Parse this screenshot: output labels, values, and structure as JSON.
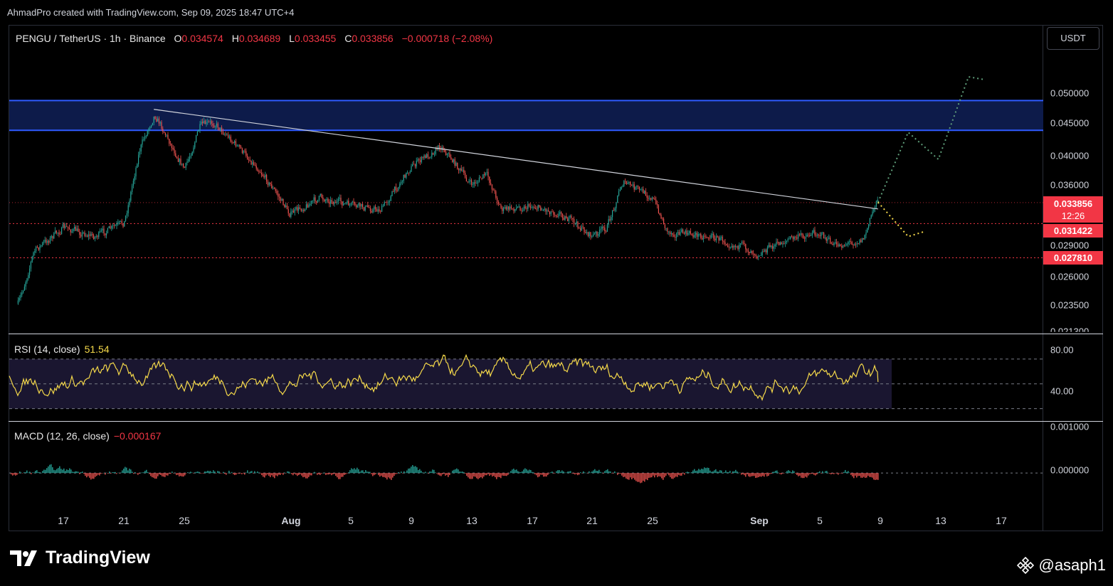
{
  "header": {
    "credit": "AhmadPro created with TradingView.com, Sep 09, 2025 18:47 UTC+4"
  },
  "legend": {
    "symbol": "PENGU / TetherUS · 1h · Binance",
    "open_label": "O",
    "open": "0.034574",
    "high_label": "H",
    "high": "0.034689",
    "low_label": "L",
    "low": "0.033455",
    "close_label": "C",
    "close": "0.033856",
    "change": "−0.000718 (−2.08%)"
  },
  "currency_button": "USDT",
  "price_axis": [
    "0.050000",
    "0.045000",
    "0.040000",
    "0.036000",
    "0.029000",
    "0.026000",
    "0.023500",
    "0.021300"
  ],
  "price_tags": {
    "current": "0.033856",
    "countdown": "12:26",
    "level_1": "0.031422",
    "level_2": "0.027810"
  },
  "rsi": {
    "label": "RSI (14, close)",
    "value": "51.54",
    "axis": [
      "80.00",
      "40.00"
    ]
  },
  "macd": {
    "label": "MACD (12, 26, close)",
    "value": "−0.000167",
    "axis": [
      "0.001000",
      "0.000000"
    ]
  },
  "time_axis": [
    "17",
    "21",
    "25",
    "Aug",
    "5",
    "9",
    "13",
    "17",
    "21",
    "25",
    "Sep",
    "5",
    "9",
    "13",
    "17"
  ],
  "brand": "TradingView",
  "author": "@asaph1",
  "colors": {
    "up": "#26a69a",
    "down": "#ef5350",
    "zone": "#0d1b4a",
    "zone_border": "#2f5bff",
    "rsi": "#f5d94a",
    "level": "#f23645",
    "bull_path": "#5f9e7a",
    "bear_path": "#f5d94a"
  },
  "chart_data": {
    "type": "candlestick",
    "title": "PENGU / TetherUS · 1h · Binance",
    "ylim": [
      0.0213,
      0.0535
    ],
    "y_ticks": [
      0.05,
      0.045,
      0.04,
      0.036,
      0.029,
      0.026,
      0.0235,
      0.0213
    ],
    "x_ticks": [
      "17",
      "21",
      "25",
      "Aug",
      "5",
      "9",
      "13",
      "17",
      "21",
      "25",
      "Sep",
      "5",
      "9",
      "13",
      "17"
    ],
    "resistance_zone": [
      0.0438,
      0.0487
    ],
    "horizontal_levels": [
      0.033856,
      0.031422,
      0.02781
    ],
    "trendline": {
      "from": {
        "date": "Jul 23",
        "price": 0.0472
      },
      "to": {
        "date": "Sep 9",
        "price": 0.0331
      }
    },
    "price_path": [
      [
        "Jul 14",
        0.0236
      ],
      [
        "Jul 15",
        0.0285
      ],
      [
        "Jul 17",
        0.031
      ],
      [
        "Jul 19",
        0.03
      ],
      [
        "Jul 21",
        0.0315
      ],
      [
        "Jul 22",
        0.041
      ],
      [
        "Jul 23",
        0.0465
      ],
      [
        "Jul 25",
        0.038
      ],
      [
        "Jul 26",
        0.0445
      ],
      [
        "Jul 27",
        0.045
      ],
      [
        "Jul 30",
        0.038
      ],
      [
        "Aug 1",
        0.0325
      ],
      [
        "Aug 3",
        0.0345
      ],
      [
        "Aug 5",
        0.0335
      ],
      [
        "Aug 7",
        0.033
      ],
      [
        "Aug 9",
        0.0385
      ],
      [
        "Aug 11",
        0.0415
      ],
      [
        "Aug 13",
        0.036
      ],
      [
        "Aug 14",
        0.0375
      ],
      [
        "Aug 15",
        0.033
      ],
      [
        "Aug 17",
        0.0335
      ],
      [
        "Aug 19",
        0.0325
      ],
      [
        "Aug 21",
        0.03
      ],
      [
        "Aug 22",
        0.031
      ],
      [
        "Aug 23",
        0.0365
      ],
      [
        "Aug 25",
        0.0345
      ],
      [
        "Aug 26",
        0.0305
      ],
      [
        "Aug 29",
        0.03
      ],
      [
        "Sep 1",
        0.0283
      ],
      [
        "Sep 3",
        0.0297
      ],
      [
        "Sep 5",
        0.0305
      ],
      [
        "Sep 6",
        0.029
      ],
      [
        "Sep 8",
        0.0297
      ],
      [
        "Sep 9",
        0.0351
      ],
      [
        "Sep 9",
        0.0339
      ]
    ],
    "projection_bullish": [
      [
        "Sep 9",
        0.0339
      ],
      [
        "Sep 11",
        0.0435
      ],
      [
        "Sep 13",
        0.0395
      ],
      [
        "Sep 15",
        0.053
      ],
      [
        "Sep 16",
        0.0525
      ]
    ],
    "projection_bearish": [
      [
        "Sep 9",
        0.0339
      ],
      [
        "Sep 11",
        0.03
      ],
      [
        "Sep 12",
        0.0305
      ]
    ],
    "rsi": {
      "last": 51.54,
      "bands": [
        70,
        50,
        30
      ],
      "ylim": [
        20,
        90
      ]
    },
    "macd": {
      "last": -0.000167,
      "ylim": [
        -0.0009,
        0.0012
      ]
    }
  }
}
